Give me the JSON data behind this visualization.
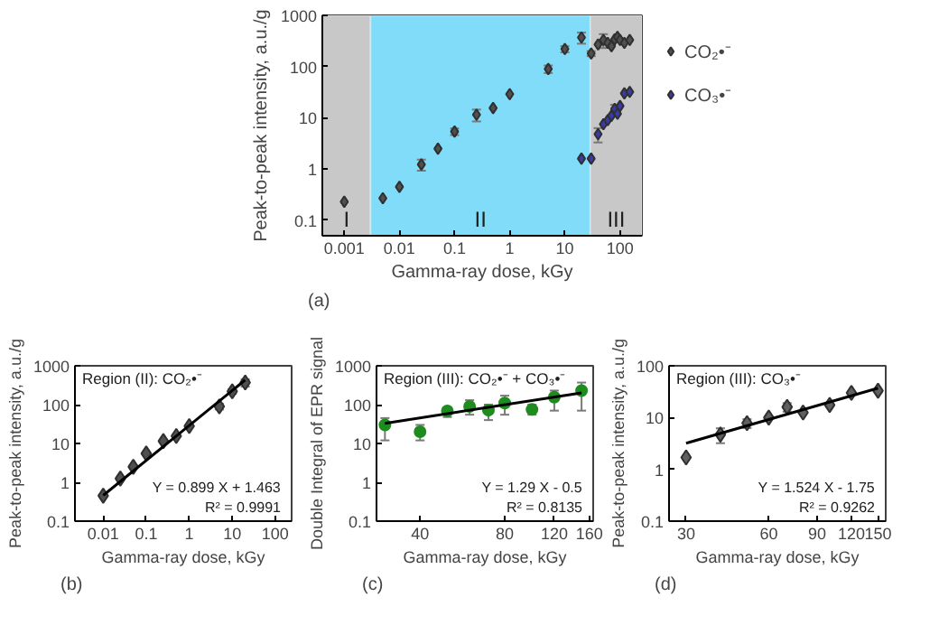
{
  "chart_data": [
    {
      "type": "scatter",
      "xlabel": "Gamma-ray dose, kGy",
      "ylabel": "Peak-to-peak intensity, a.u./g",
      "log": "xy",
      "xlim": [
        0.0004,
        250
      ],
      "ylim": [
        0.05,
        1000
      ],
      "xticks": [
        0.001,
        0.01,
        0.1,
        1,
        10,
        100
      ],
      "yticks": [
        0.1,
        1,
        10,
        100,
        1000
      ],
      "marker": "diamond",
      "legend": "right",
      "annotations": [
        "(a)"
      ],
      "bands": [
        {
          "axis": "x",
          "from": 0.0004,
          "to": 0.003,
          "label": "I",
          "color": "#c8c8c8"
        },
        {
          "axis": "x",
          "from": 0.003,
          "to": 29,
          "label": "II",
          "color": "#80dcf8"
        },
        {
          "axis": "x",
          "from": 29,
          "to": 250,
          "label": "III",
          "color": "#c8c8c8"
        }
      ],
      "series": [
        {
          "name": "CO₂•⁻",
          "color": "#505050",
          "x": [
            0.001,
            0.005,
            0.01,
            0.025,
            0.05,
            0.1,
            0.25,
            0.5,
            1,
            5,
            10,
            20,
            30,
            40,
            50,
            60,
            70,
            80,
            90,
            100,
            120,
            150
          ],
          "values": [
            0.23,
            0.27,
            0.45,
            1.23,
            2.5,
            5.4,
            11.5,
            15.5,
            29,
            90,
            220,
            370,
            180,
            270,
            330,
            290,
            250,
            340,
            380,
            330,
            290,
            330
          ],
          "errors": [
            null,
            null,
            null,
            0.3,
            null,
            0.8,
            3,
            null,
            null,
            15,
            30,
            90,
            20,
            null,
            100,
            null,
            null,
            null,
            null,
            null,
            null,
            null
          ]
        },
        {
          "name": "CO₃•⁻",
          "color": "#3a3aa8",
          "x": [
            20,
            30,
            40,
            50,
            60,
            70,
            80,
            90,
            100,
            120,
            150
          ],
          "values": [
            1.6,
            1.6,
            4.8,
            7.5,
            9,
            11,
            15,
            12,
            17,
            30,
            32
          ],
          "errors": [
            null,
            null,
            1.5,
            null,
            null,
            null,
            3,
            null,
            null,
            null,
            null
          ]
        }
      ]
    },
    {
      "type": "scatter",
      "xlabel": "Gamma-ray dose, kGy",
      "ylabel": "Peak-to-peak intensity, a.u./g",
      "log": "xy",
      "xlim": [
        0.0022,
        240
      ],
      "ylim": [
        0.1,
        1000
      ],
      "xticks": [
        0.01,
        0.1,
        1,
        10,
        100
      ],
      "yticks": [
        0.1,
        1,
        10,
        100,
        1000
      ],
      "annotations": [
        "(b)",
        "Region (II): CO₂•⁻",
        "Y = 0.899 X + 1.463",
        "R² = 0.9991"
      ],
      "series": [
        {
          "color": "#505050",
          "marker": "diamond",
          "x": [
            0.01,
            0.025,
            0.05,
            0.1,
            0.25,
            0.5,
            1,
            5,
            10,
            20
          ],
          "values": [
            0.45,
            1.25,
            2.5,
            5.5,
            11.5,
            15.5,
            28,
            90,
            220,
            370
          ],
          "errors": [
            null,
            null,
            null,
            null,
            null,
            null,
            null,
            15,
            30,
            80
          ]
        },
        {
          "type": "line",
          "marker": "none",
          "color": "#000000",
          "x": [
            0.01,
            20
          ],
          "values": [
            0.46,
            430
          ]
        }
      ]
    },
    {
      "type": "scatter",
      "xlabel": "Gamma-ray dose, kGy",
      "ylabel": "Double Integral of EPR signal",
      "log": "xy",
      "xlim": [
        28,
        165
      ],
      "ylim": [
        0.1,
        1000
      ],
      "xticks": [
        40,
        80,
        120,
        160
      ],
      "yticks": [
        0.1,
        1,
        10,
        100,
        1000
      ],
      "annotations": [
        "(c)",
        "Region (III): CO₂•⁻ + CO₃•⁻",
        "Y = 1.29 X - 0.5",
        "R² = 0.8135"
      ],
      "series": [
        {
          "color": "#1e8c1e",
          "marker": "circle",
          "x": [
            30,
            40,
            50,
            60,
            70,
            80,
            100,
            120,
            150
          ],
          "values": [
            30,
            20,
            69,
            90,
            72,
            110,
            75,
            155,
            230
          ],
          "errors": [
            [
              12,
              45
            ],
            [
              12,
              30
            ],
            [
              48,
              85
            ],
            [
              55,
              130
            ],
            [
              40,
              100
            ],
            [
              55,
              170
            ],
            [
              55,
              100
            ],
            [
              70,
              230
            ],
            [
              70,
              370
            ]
          ]
        },
        {
          "type": "line",
          "marker": "none",
          "color": "#000000",
          "x": [
            30,
            150
          ],
          "values": [
            33,
            200
          ]
        }
      ]
    },
    {
      "type": "scatter",
      "xlabel": "Gamma-ray dose, kGy",
      "ylabel": "Peak-to-peak intensity, a.u./g",
      "log": "xy",
      "xlim": [
        26,
        160
      ],
      "ylim": [
        0.1,
        100
      ],
      "xticks": [
        30,
        60,
        90,
        120,
        150
      ],
      "yticks": [
        0.1,
        1,
        10,
        100
      ],
      "annotations": [
        "(d)",
        "Region (III): CO₃•⁻",
        "Y = 1.524 X - 1.75",
        "R² = 0.9262"
      ],
      "series": [
        {
          "color": "#606060",
          "marker": "diamond",
          "x": [
            30,
            40,
            50,
            60,
            70,
            80,
            100,
            120,
            150
          ],
          "values": [
            1.7,
            4.7,
            7.8,
            10,
            16,
            12.5,
            17.5,
            30,
            33
          ],
          "errors": [
            null,
            1.5,
            1.5,
            null,
            3,
            null,
            null,
            null,
            null
          ]
        },
        {
          "type": "line",
          "marker": "none",
          "color": "#000000",
          "x": [
            30,
            150
          ],
          "values": [
            3.2,
            37
          ]
        }
      ]
    }
  ]
}
